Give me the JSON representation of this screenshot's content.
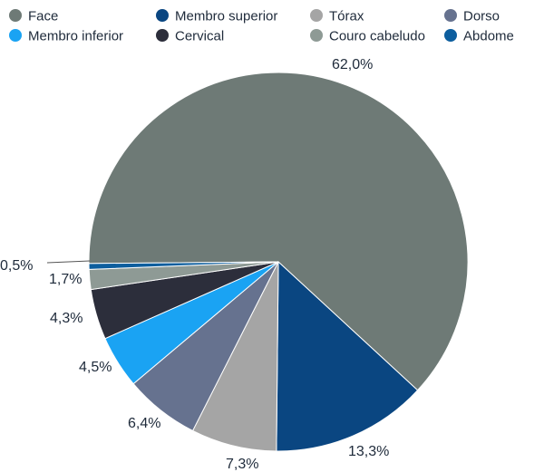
{
  "chart_data": {
    "type": "pie",
    "unit": "%",
    "series": [
      {
        "name": "Face",
        "value": 62.0,
        "label": "62,0%",
        "color": "#6e7a76"
      },
      {
        "name": "Membro superior",
        "value": 13.3,
        "label": "13,3%",
        "color": "#0a4681"
      },
      {
        "name": "Tórax",
        "value": 7.3,
        "label": "7,3%",
        "color": "#a5a5a5"
      },
      {
        "name": "Dorso",
        "value": 6.4,
        "label": "6,4%",
        "color": "#66728f"
      },
      {
        "name": "Membro inferior",
        "value": 4.5,
        "label": "4,5%",
        "color": "#1aa3f3"
      },
      {
        "name": "Cervical",
        "value": 4.3,
        "label": "4,3%",
        "color": "#2c2e3b"
      },
      {
        "name": "Couro cabeludo",
        "value": 1.7,
        "label": "1,7%",
        "color": "#8e9a95"
      },
      {
        "name": "Abdome",
        "value": 0.5,
        "label": "0,5%",
        "color": "#0d5e9e"
      }
    ],
    "legend_position": "top"
  }
}
